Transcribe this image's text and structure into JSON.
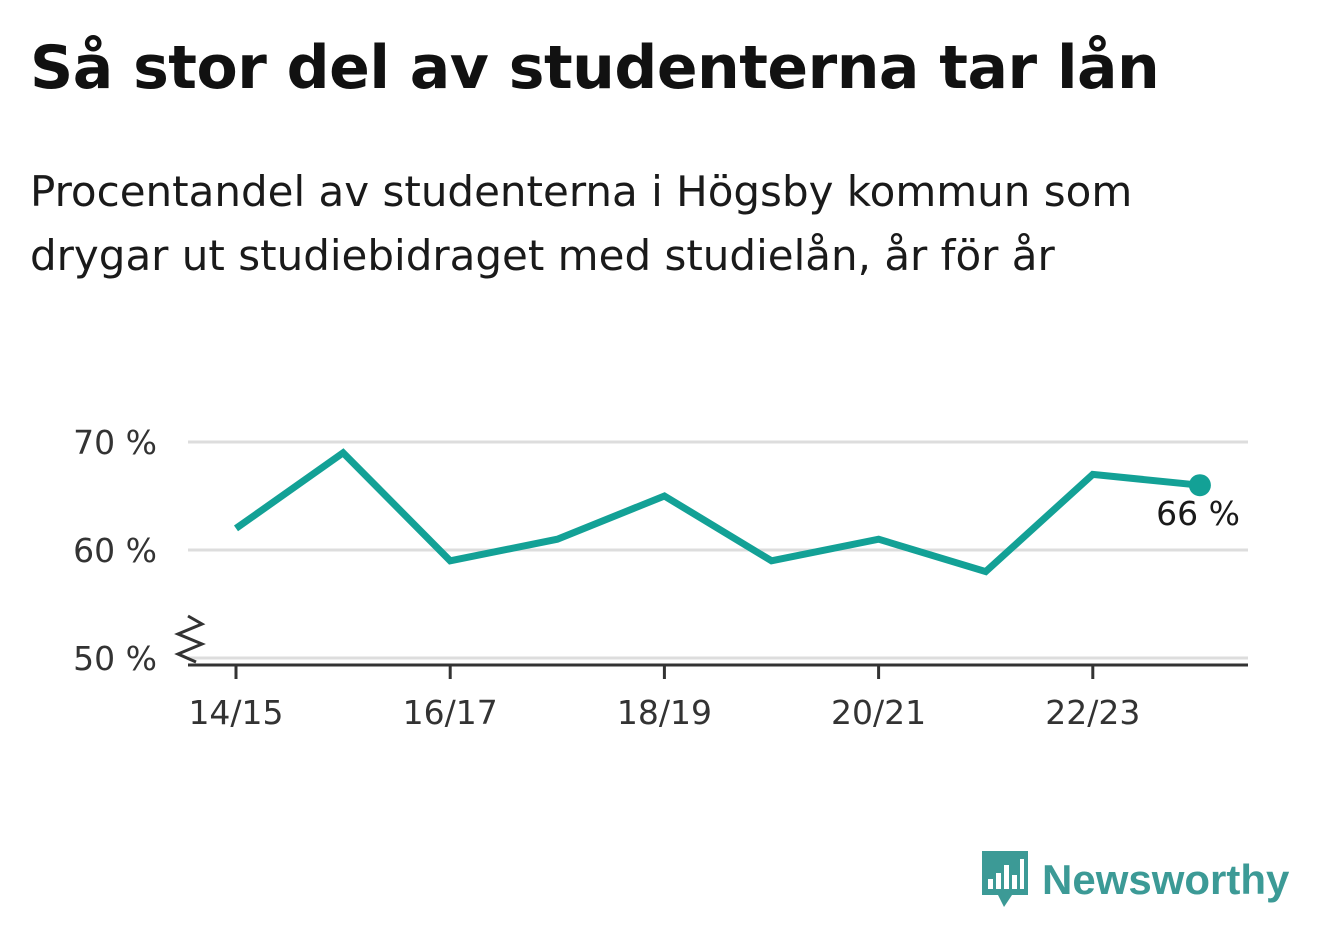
{
  "title": "Så stor del av studenterna tar lån",
  "subtitle": "Procentandel av studenterna i Högsby kommun som drygar ut studiebidraget med studielån, år för år",
  "brand": {
    "name": "Newsworthy",
    "color": "#3c9a96",
    "icon": "bar-chart-speech-bubble-icon"
  },
  "chart_data": {
    "type": "line",
    "x": [
      "14/15",
      "15/16",
      "16/17",
      "17/18",
      "18/19",
      "19/20",
      "20/21",
      "21/22",
      "22/23",
      "23/24"
    ],
    "x_tick_labels": [
      "14/15",
      "16/17",
      "18/19",
      "20/21",
      "22/23"
    ],
    "series": [
      {
        "values": [
          62,
          69,
          59,
          61,
          65,
          59,
          61,
          58,
          67,
          66
        ],
        "color": "#13a196"
      }
    ],
    "ylim": [
      50,
      70
    ],
    "y_ticks": [
      50,
      60,
      70
    ],
    "y_tick_labels": [
      "50 %",
      "60 %",
      "70 %"
    ],
    "y_axis_break": true,
    "last_value_label": "66 %",
    "grid": true,
    "xlabel": "",
    "ylabel": ""
  }
}
